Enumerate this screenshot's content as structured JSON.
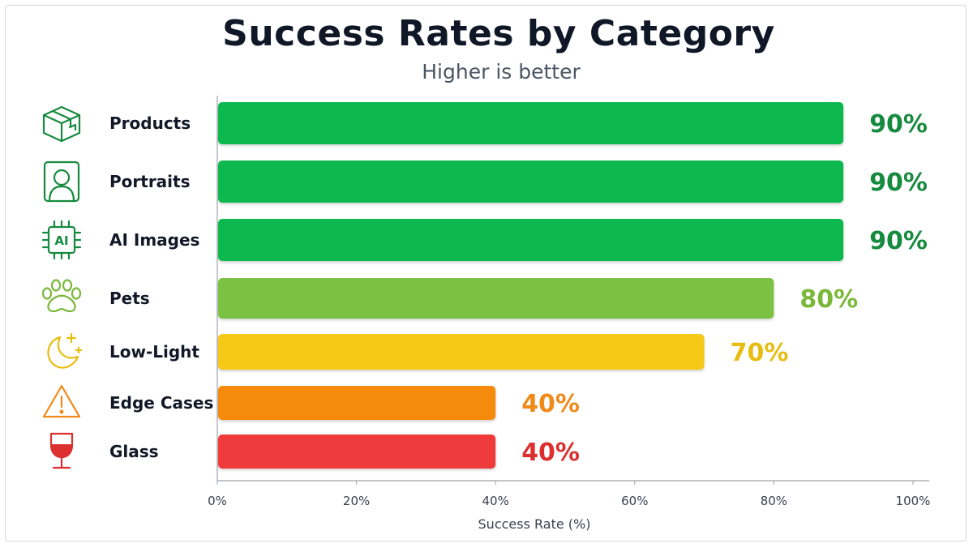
{
  "chart_data": {
    "type": "bar",
    "orientation": "horizontal",
    "title": "Success Rates by Category",
    "subtitle": "Higher is better",
    "xlabel": "Success Rate (%)",
    "ylabel": "",
    "xlim": [
      0,
      100
    ],
    "xticks": [
      0,
      20,
      40,
      60,
      80,
      100
    ],
    "xtick_labels": [
      "0%",
      "20%",
      "40%",
      "60%",
      "80%",
      "100%"
    ],
    "grid": false,
    "categories": [
      "Products",
      "Portraits",
      "AI Images",
      "Pets",
      "Low-Light",
      "Edge Cases",
      "Glass"
    ],
    "values": [
      90,
      90,
      90,
      80,
      70,
      40,
      40
    ],
    "value_labels": [
      "90%",
      "90%",
      "90%",
      "80%",
      "70%",
      "40%",
      "40%"
    ],
    "icons": [
      "box-icon",
      "portrait-icon",
      "ai-chip-icon",
      "paw-icon",
      "moon-stars-icon",
      "warning-icon",
      "wine-glass-icon"
    ],
    "icon_text": [
      "",
      "",
      "AI",
      "",
      "",
      "",
      ""
    ],
    "colors": [
      "#10b84f",
      "#10b84f",
      "#10b84f",
      "#7cc242",
      "#f6c915",
      "#f58a0b",
      "#ef3b3b"
    ],
    "label_colors": [
      "#168a3e",
      "#168a3e",
      "#168a3e",
      "#7ab83a",
      "#e8bd12",
      "#f08a1a",
      "#dc2f2f"
    ]
  }
}
